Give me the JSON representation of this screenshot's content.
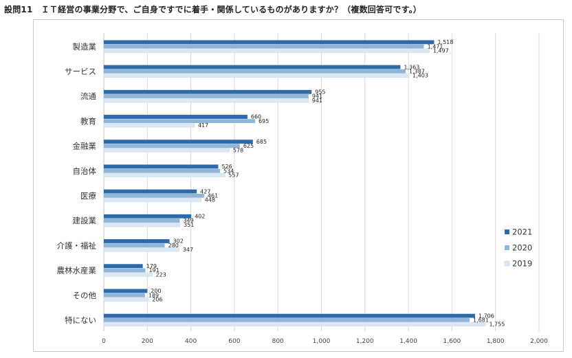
{
  "chart_data": {
    "type": "bar",
    "orientation": "horizontal",
    "title": "設問11　ＩＴ経営の事業分野で、ご自身ですでに着手・関係しているものがありますか？（複数回答可です。）",
    "categories": [
      "製造業",
      "サービス",
      "流通",
      "教育",
      "金融業",
      "自治体",
      "医療",
      "建設業",
      "介護・福祉",
      "農林水産業",
      "その他",
      "特にない"
    ],
    "series": [
      {
        "name": "2021",
        "color": "#2e6aa8",
        "values": [
          1518,
          1363,
          955,
          660,
          685,
          526,
          427,
          402,
          302,
          179,
          200,
          1706
        ]
      },
      {
        "name": "2020",
        "color": "#8fb5d9",
        "values": [
          1471,
          1387,
          941,
          695,
          625,
          534,
          461,
          349,
          280,
          191,
          189,
          1681
        ]
      },
      {
        "name": "2019",
        "color": "#dbe8f4",
        "values": [
          1497,
          1403,
          941,
          417,
          578,
          557,
          448,
          351,
          347,
          223,
          206,
          1755
        ]
      }
    ],
    "xlim": [
      0,
      2000
    ],
    "xticks": [
      "0",
      "200",
      "400",
      "600",
      "800",
      "1,000",
      "1,200",
      "1,400",
      "1,600",
      "1,800",
      "2,000"
    ],
    "grid": true,
    "legend": "right"
  }
}
